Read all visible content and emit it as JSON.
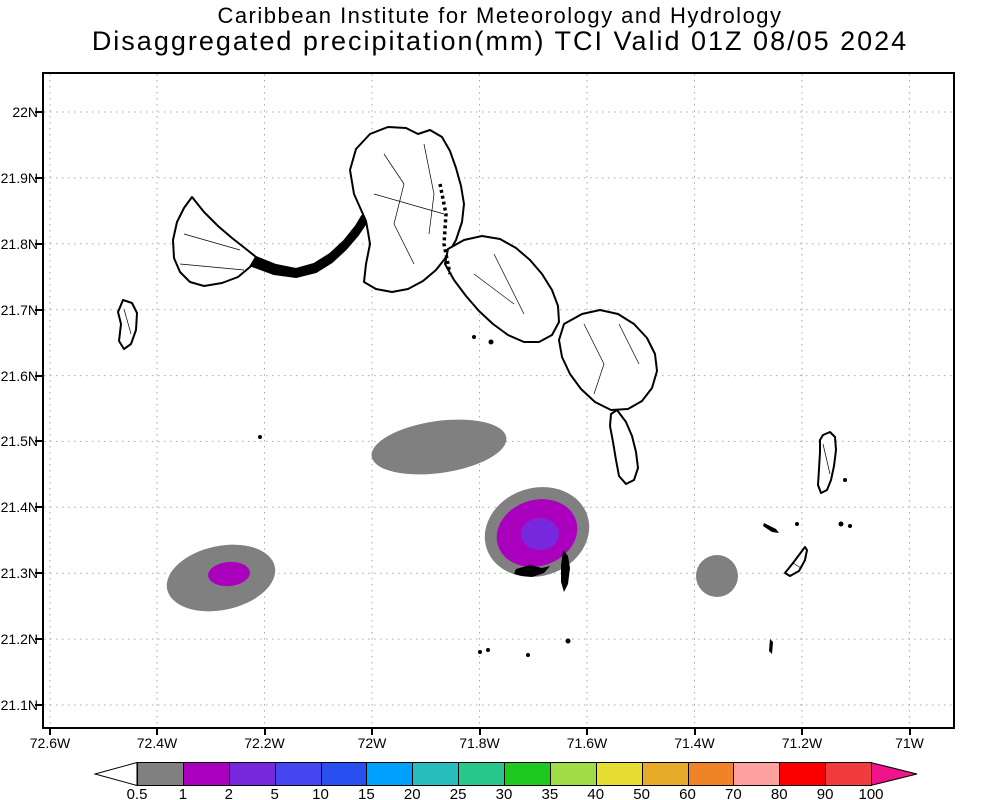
{
  "title": {
    "line1": "Caribbean Institute for Meteorology and Hydrology",
    "line2": "Disaggregated precipitation(mm) TCI Valid 01Z 08/05 2024"
  },
  "map": {
    "lat_labels": [
      "22N",
      "21.9N",
      "21.8N",
      "21.7N",
      "21.6N",
      "21.5N",
      "21.4N",
      "21.3N",
      "21.2N",
      "21.1N"
    ],
    "lon_labels": [
      "72.6W",
      "72.4W",
      "72.2W",
      "72W",
      "71.8W",
      "71.6W",
      "71.4W",
      "71.2W",
      "71W"
    ]
  },
  "colorbar": {
    "labels": [
      "0.5",
      "1",
      "2",
      "5",
      "10",
      "15",
      "20",
      "25",
      "30",
      "35",
      "40",
      "50",
      "60",
      "70",
      "80",
      "90",
      "100"
    ],
    "cell_colors": [
      "#808080",
      "#AA00BE",
      "#7828DC",
      "#4646F0",
      "#2850F0",
      "#00A0FF",
      "#28BEBE",
      "#28C88C",
      "#1EC81E",
      "#A0DC46",
      "#E6DC32",
      "#E6AA28",
      "#F08228",
      "#FFA0A0",
      "#FA0000",
      "#F03C3C"
    ],
    "under_color": "#FFFFFF",
    "over_color": "#F0148C"
  },
  "chart_data": {
    "type": "filled-contour-map",
    "title": "Disaggregated precipitation(mm) TCI Valid 01Z 08/05 2024",
    "lat_range": [
      "21.05N",
      "22.05N"
    ],
    "lon_range": [
      "72.6W",
      "70.9W"
    ],
    "unit": "mm",
    "contour_levels": [
      0.5,
      1,
      2,
      5,
      10,
      15,
      20,
      25,
      30,
      35,
      40,
      50,
      60,
      70,
      80,
      90,
      100
    ],
    "precip_cells": [
      {
        "approx_center": "72.28W 21.30N",
        "max_band_mm": "1-2"
      },
      {
        "approx_center": "71.87W 21.49N",
        "max_band_mm": "0.5-1"
      },
      {
        "approx_center": "71.68W 21.36N",
        "max_band_mm": "2-5"
      },
      {
        "approx_center": "71.36W 21.30N",
        "max_band_mm": "0.5-1"
      }
    ]
  }
}
